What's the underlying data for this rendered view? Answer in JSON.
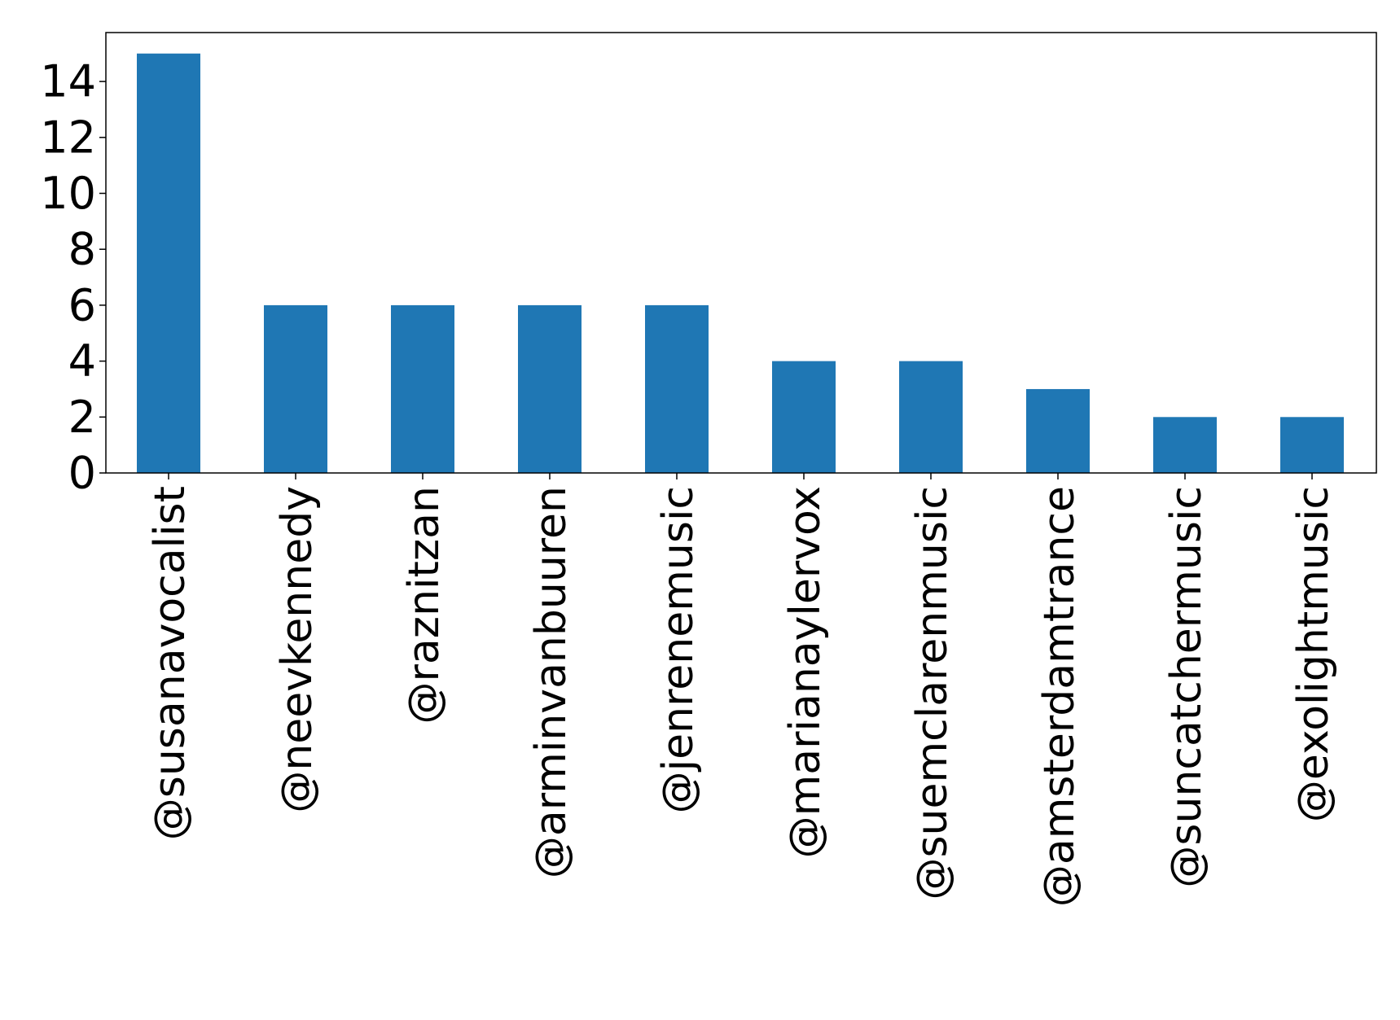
{
  "chart_data": {
    "type": "bar",
    "title": "",
    "xlabel": "",
    "ylabel": "",
    "categories": [
      "@susanavocalist",
      "@neevkennedy",
      "@raznitzan",
      "@arminvanbuuren",
      "@jenrenemusic",
      "@marianaylervox",
      "@suemclarenmusic",
      "@amsterdamtrance",
      "@suncatchermusic",
      "@exolightmusic"
    ],
    "values": [
      15,
      6,
      6,
      6,
      6,
      4,
      4,
      3,
      2,
      2
    ],
    "yticks": [
      "0",
      "2",
      "4",
      "6",
      "8",
      "10",
      "12",
      "14"
    ],
    "ylim": [
      0,
      15.75
    ],
    "grid": false,
    "legend": "none",
    "bar_color": "#1f77b4"
  }
}
